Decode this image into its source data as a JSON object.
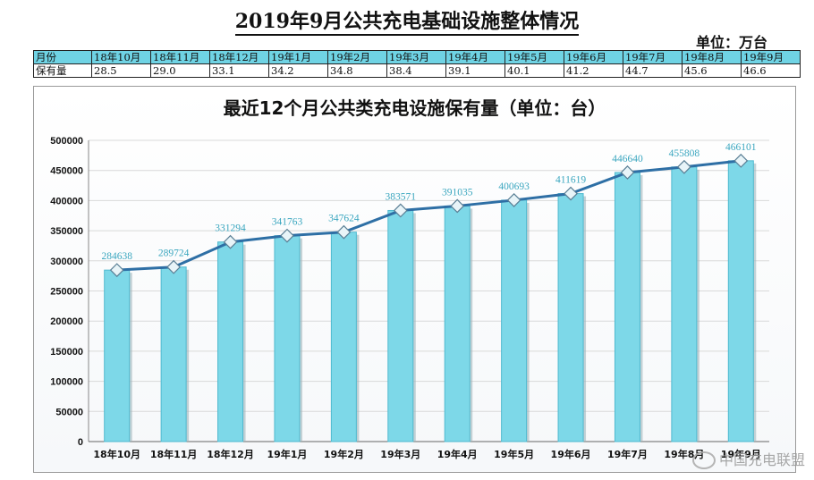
{
  "page": {
    "title": "2019年9月公共充电基础设施整体情况",
    "unit": "单位：万台"
  },
  "summary_table": {
    "row_header_month": "月份",
    "row_header_count": "保有量",
    "months": [
      "18年10月",
      "18年11月",
      "18年12月",
      "19年1月",
      "19年2月",
      "19年3月",
      "19年4月",
      "19年5月",
      "19年6月",
      "19年7月",
      "19年8月",
      "19年9月"
    ],
    "values": [
      "28.5",
      "29.0",
      "33.1",
      "34.2",
      "34.8",
      "38.4",
      "39.1",
      "40.1",
      "41.2",
      "44.7",
      "45.6",
      "46.6"
    ]
  },
  "chart_data": {
    "type": "bar",
    "title": "最近12个月公共类充电设施保有量（单位：台）",
    "categories": [
      "18年10月",
      "18年11月",
      "18年12月",
      "19年1月",
      "19年2月",
      "19年3月",
      "19年4月",
      "19年5月",
      "19年6月",
      "19年7月",
      "19年8月",
      "19年9月"
    ],
    "values": [
      284638,
      289724,
      331294,
      341763,
      347624,
      383571,
      391035,
      400693,
      411619,
      446640,
      455808,
      466101
    ],
    "overlay_line": true,
    "ylim": [
      0,
      500000
    ],
    "yticks": [
      0,
      50000,
      100000,
      150000,
      200000,
      250000,
      300000,
      350000,
      400000,
      450000,
      500000
    ],
    "grid": true,
    "colors": {
      "bar": "#7dd8e8",
      "bar_edge": "#4fb9cf",
      "line": "#2e6fa5",
      "label": "#3aa6bf"
    }
  },
  "watermark": {
    "text": "中国充电联盟",
    "icon": "wechat-icon"
  }
}
